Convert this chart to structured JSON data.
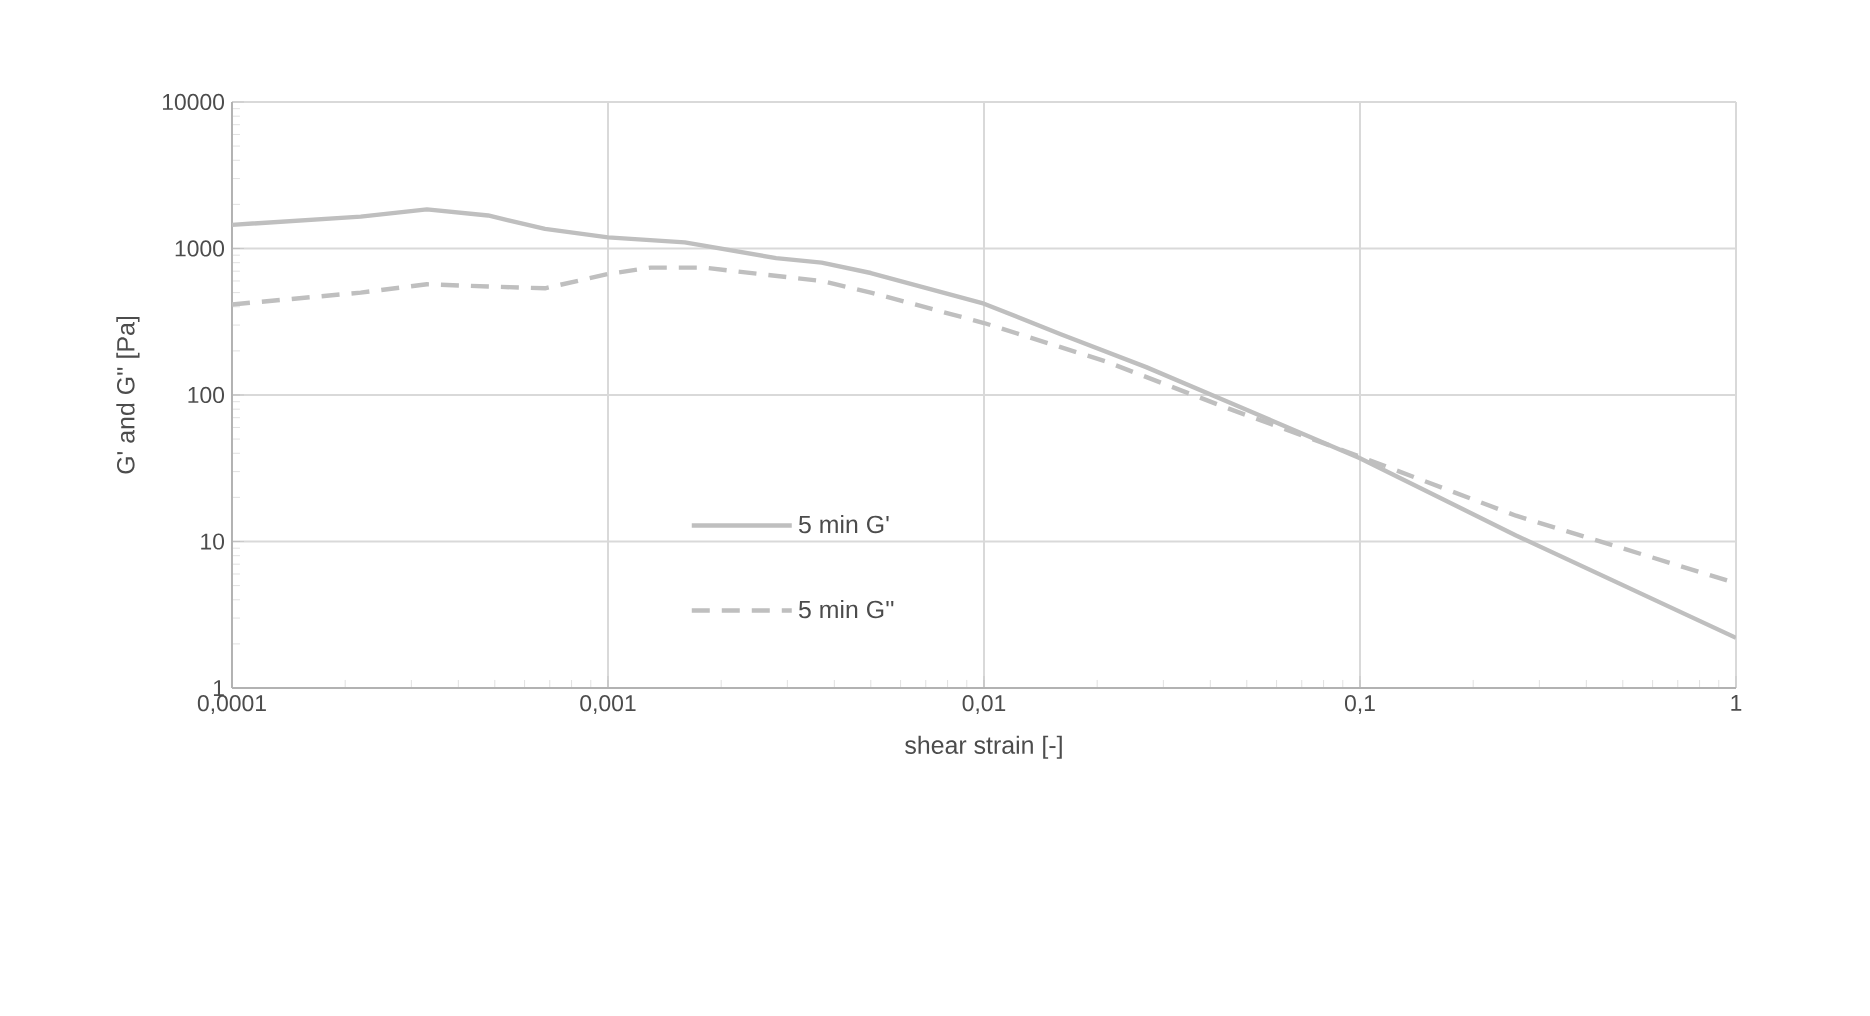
{
  "chart_data": {
    "type": "line",
    "xlabel": "shear strain [-]",
    "ylabel": "G' and G'' [Pa]",
    "log": "xy",
    "xlim": [
      0.0001,
      1
    ],
    "ylim": [
      1,
      10000
    ],
    "xticks": [
      {
        "value": 0.0001,
        "label": "0,0001"
      },
      {
        "value": 0.001,
        "label": "0,001"
      },
      {
        "value": 0.01,
        "label": "0,01"
      },
      {
        "value": 0.1,
        "label": "0,1"
      },
      1
    ],
    "yticks": [
      1,
      10,
      100,
      1000,
      10000
    ],
    "grid": true,
    "legend": "bottom",
    "series": [
      {
        "name": "5 min G'",
        "color": "#bfbfbf",
        "line_style": "solid",
        "x": [
          0.0001,
          0.00022,
          0.00033,
          0.00048,
          0.00068,
          0.001,
          0.0016,
          0.0028,
          0.0037,
          0.005,
          0.01,
          0.016,
          0.027,
          0.044,
          0.1,
          0.26,
          1
        ],
        "values": [
          1450,
          1650,
          1850,
          1680,
          1360,
          1190,
          1100,
          860,
          800,
          680,
          420,
          260,
          155,
          91,
          37,
          11,
          2.2
        ]
      },
      {
        "name": "5 min G''",
        "color": "#bfbfbf",
        "line_style": "dashed",
        "x": [
          0.0001,
          0.00022,
          0.00033,
          0.00048,
          0.00068,
          0.001,
          0.0013,
          0.0018,
          0.0037,
          0.005,
          0.01,
          0.021,
          0.044,
          0.1,
          0.26,
          1
        ],
        "values": [
          415,
          500,
          570,
          550,
          535,
          670,
          740,
          740,
          600,
          500,
          310,
          170,
          82,
          38,
          15,
          5.2
        ]
      }
    ]
  }
}
